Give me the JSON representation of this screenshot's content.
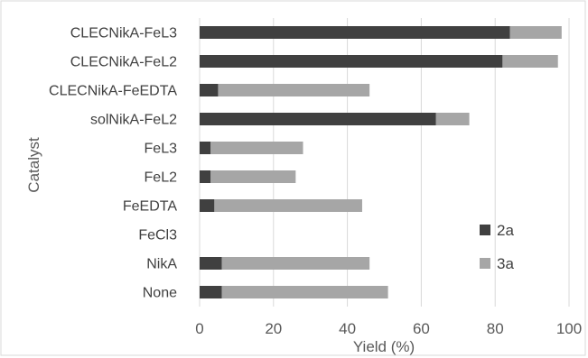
{
  "chart_data": {
    "type": "bar",
    "orientation": "horizontal",
    "stacked": true,
    "title": "",
    "xlabel": "Yield (%)",
    "ylabel": "Catalyst",
    "xlim": [
      0,
      100
    ],
    "x_ticks": [
      "0",
      "20",
      "40",
      "60",
      "80",
      "100"
    ],
    "grid": true,
    "legend_position": "right",
    "categories": [
      "CLECNikA-FeL3",
      "CLECNikA-FeL2",
      "CLECNikA-FeEDTA",
      "solNikA-FeL2",
      "FeL3",
      "FeL2",
      "FeEDTA",
      "FeCl3",
      "NikA",
      "None"
    ],
    "series": [
      {
        "name": "2a",
        "color": "#404040",
        "values": [
          84,
          82,
          5,
          64,
          3,
          3,
          4,
          0,
          6,
          6
        ]
      },
      {
        "name": "3a",
        "color": "#a6a6a6",
        "values": [
          14,
          15,
          41,
          9,
          25,
          23,
          40,
          0,
          40,
          45
        ]
      }
    ]
  }
}
